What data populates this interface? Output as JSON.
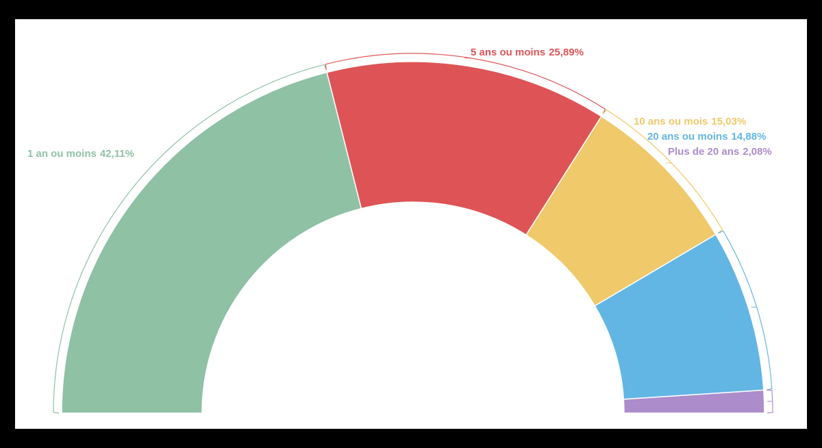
{
  "chart_data": {
    "type": "semidonut",
    "categories": [
      "1 an ou moins",
      "5 ans ou moins",
      "10 ans ou mois",
      "20 ans ou moins",
      "Plus de 20 ans"
    ],
    "values": [
      42.11,
      25.89,
      15.03,
      14.88,
      2.08
    ],
    "value_labels": [
      "42,11%",
      "25,89%",
      "15,03%",
      "14,88%",
      "2,08%"
    ],
    "colors": [
      "#8fc1a5",
      "#de5456",
      "#efc96a",
      "#62b6e4",
      "#ac8ccb"
    ]
  }
}
